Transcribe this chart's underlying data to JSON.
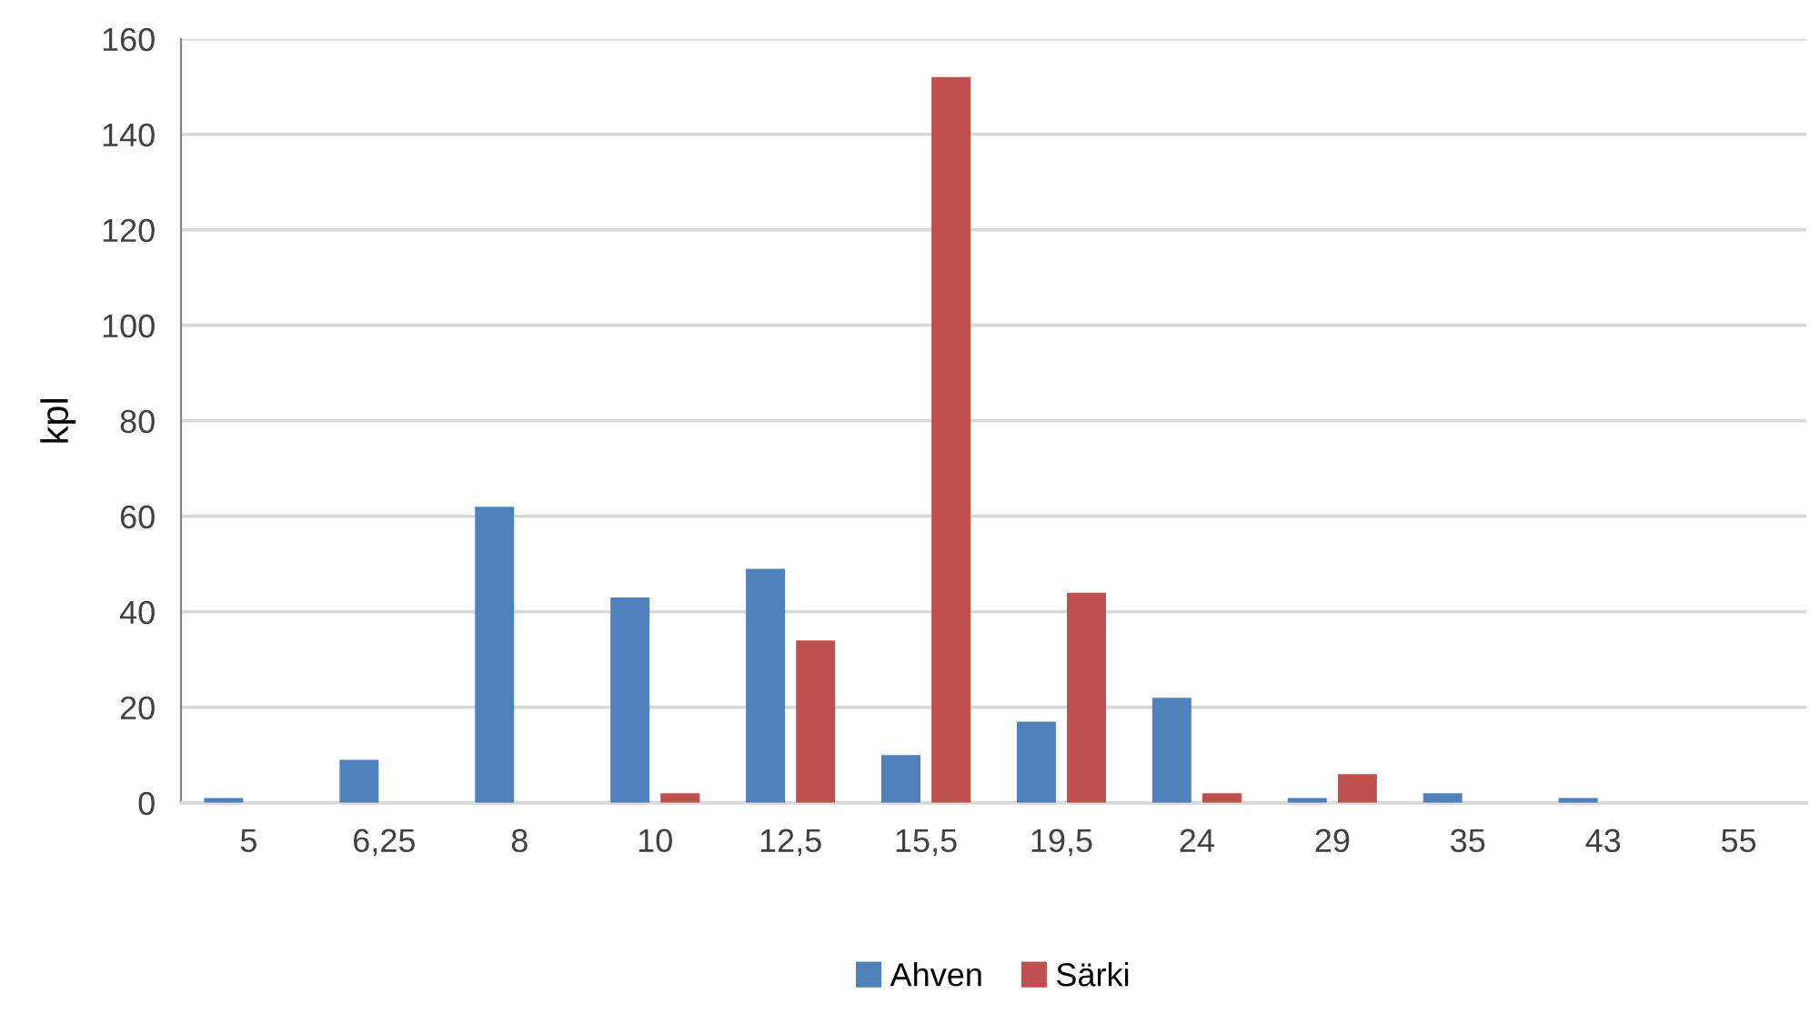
{
  "chart_data": {
    "type": "bar",
    "ylabel": "kpl",
    "categories": [
      "5",
      "6,25",
      "8",
      "10",
      "12,5",
      "15,5",
      "19,5",
      "24",
      "29",
      "35",
      "43",
      "55"
    ],
    "series": [
      {
        "name": "Ahven",
        "color": "#4f81bd",
        "values": [
          1,
          9,
          62,
          43,
          49,
          10,
          17,
          22,
          1,
          2,
          1,
          0
        ]
      },
      {
        "name": "Särki",
        "color": "#c0504d",
        "values": [
          0,
          0,
          0,
          2,
          34,
          152,
          44,
          2,
          6,
          0,
          0,
          0
        ]
      }
    ],
    "ylim": [
      0,
      160
    ],
    "yticks": [
      0,
      20,
      40,
      60,
      80,
      100,
      120,
      140,
      160
    ],
    "grid": "y",
    "legend": "bottom"
  }
}
